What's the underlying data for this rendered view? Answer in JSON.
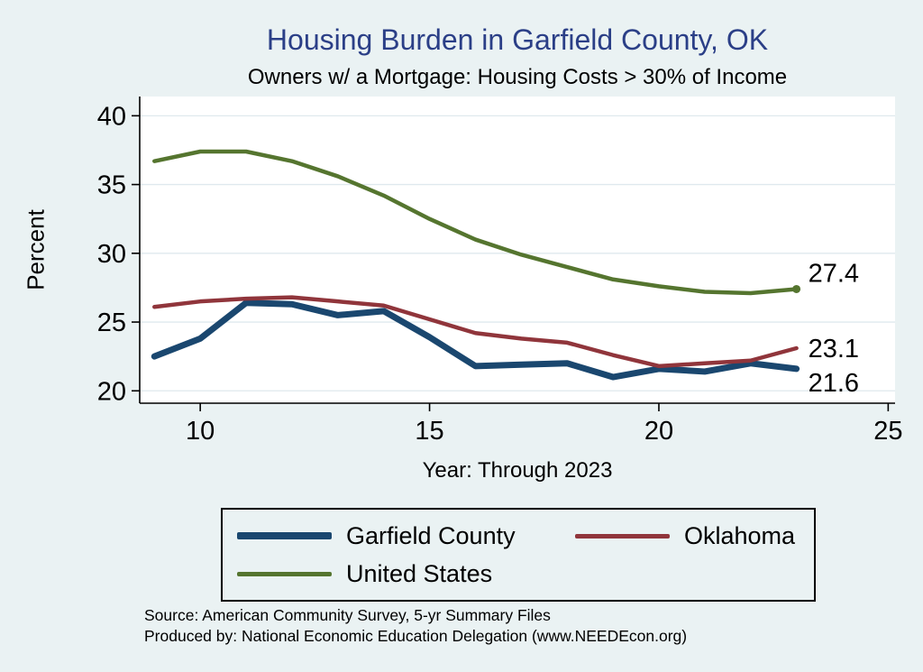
{
  "header": {
    "title": "Housing Burden in Garfield County, OK",
    "subtitle": "Owners w/ a Mortgage: Housing Costs > 30% of Income"
  },
  "chart_data": {
    "type": "line",
    "title": "Housing Burden in Garfield County, OK",
    "subtitle": "Owners w/ a Mortgage: Housing Costs > 30% of Income",
    "xlabel": "Year: Through 2023",
    "ylabel": "Percent",
    "x": [
      9,
      10,
      11,
      12,
      13,
      14,
      15,
      16,
      17,
      18,
      19,
      20,
      21,
      22,
      23
    ],
    "xticks": [
      10,
      15,
      20,
      25
    ],
    "yticks": [
      20,
      25,
      30,
      35,
      40
    ],
    "xlim": [
      8.68,
      25.15
    ],
    "ylim": [
      19.1,
      41.4
    ],
    "grid": true,
    "legend_position": "bottom",
    "series": [
      {
        "name": "Garfield County",
        "color": "#1a476f",
        "width": 7,
        "end_label": "21.6",
        "values": [
          22.5,
          23.8,
          26.4,
          26.3,
          25.5,
          25.8,
          23.9,
          21.8,
          21.9,
          22.0,
          21.0,
          21.6,
          21.4,
          22.0,
          21.6
        ]
      },
      {
        "name": "Oklahoma",
        "color": "#90353b",
        "width": 4.5,
        "end_label": "23.1",
        "values": [
          26.1,
          26.5,
          26.7,
          26.8,
          26.5,
          26.2,
          25.2,
          24.2,
          23.8,
          23.5,
          22.6,
          21.8,
          22.0,
          22.2,
          23.1
        ]
      },
      {
        "name": "United States",
        "color": "#55752f",
        "width": 4.5,
        "end_label": "27.4",
        "marker_last": true,
        "values": [
          36.7,
          37.4,
          37.4,
          36.7,
          35.6,
          34.2,
          32.5,
          31.0,
          29.9,
          29.0,
          28.1,
          27.6,
          27.2,
          27.1,
          27.4
        ]
      }
    ]
  },
  "footer": {
    "source": "Source: American Community Survey, 5-yr Summary Files",
    "produced_by": "Produced by: National Economic Education Delegation (www.NEEDEcon.org)"
  },
  "colors": {
    "background": "#eaf2f3",
    "plot_background": "#ffffff",
    "title": "#2b3f87",
    "grid": "#dfe9ee",
    "axis": "#000000"
  }
}
